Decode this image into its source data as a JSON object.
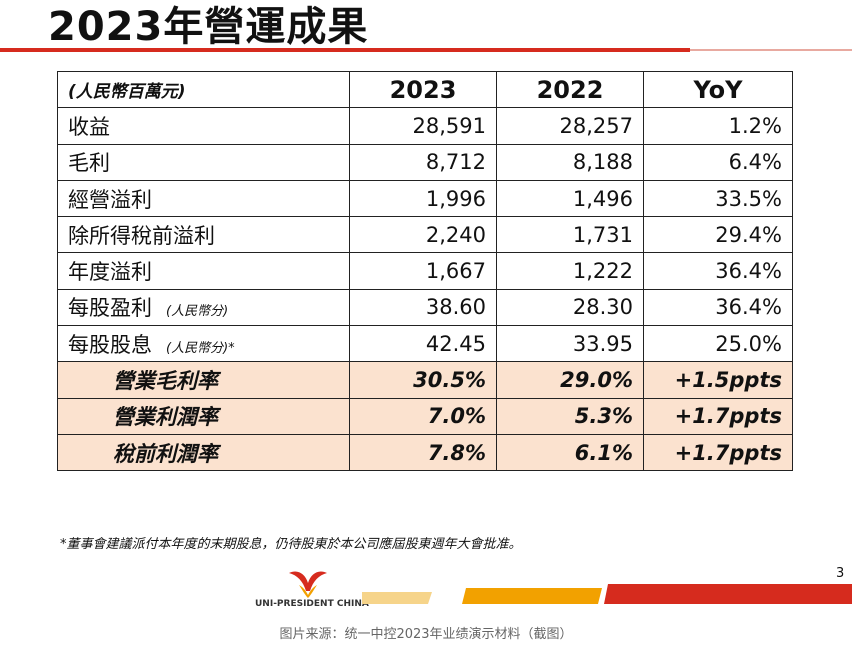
{
  "title": "2023年營運成果",
  "table": {
    "header": {
      "unit": "(人民幣百萬元)",
      "col1": "2023",
      "col2": "2022",
      "col3": "YoY"
    },
    "rows": [
      {
        "label": "收益",
        "sub": "",
        "v2023": "28,591",
        "v2022": "28,257",
        "yoy": "1.2%"
      },
      {
        "label": "毛利",
        "sub": "",
        "v2023": "8,712",
        "v2022": "8,188",
        "yoy": "6.4%"
      },
      {
        "label": "經營溢利",
        "sub": "",
        "v2023": "1,996",
        "v2022": "1,496",
        "yoy": "33.5%"
      },
      {
        "label": "除所得稅前溢利",
        "sub": "",
        "v2023": "2,240",
        "v2022": "1,731",
        "yoy": "29.4%"
      },
      {
        "label": "年度溢利",
        "sub": "",
        "v2023": "1,667",
        "v2022": "1,222",
        "yoy": "36.4%"
      },
      {
        "label": "每股盈利",
        "sub": "(人民幣分)",
        "v2023": "38.60",
        "v2022": "28.30",
        "yoy": "36.4%"
      },
      {
        "label": "每股股息",
        "sub": "(人民幣分)*",
        "v2023": "42.45",
        "v2022": "33.95",
        "yoy": "25.0%"
      }
    ],
    "highlight_rows": [
      {
        "label": "營業毛利率",
        "v2023": "30.5%",
        "v2022": "29.0%",
        "yoy": "+1.5ppts"
      },
      {
        "label": "營業利潤率",
        "v2023": "7.0%",
        "v2022": "5.3%",
        "yoy": "+1.7ppts"
      },
      {
        "label": "稅前利潤率",
        "v2023": "7.8%",
        "v2022": "6.1%",
        "yoy": "+1.7ppts"
      }
    ]
  },
  "footnote": "*董事會建議派付本年度的末期股息，仍待股東於本公司應屆股東週年大會批准。",
  "page_number": "3",
  "logo_text": "UNI-PRESIDENT CHINA",
  "caption": "图片来源：统一中控2023年业绩演示材料（截图）",
  "colors": {
    "accent_red": "#d62b1e",
    "highlight_fill": "#fbe2cf"
  }
}
